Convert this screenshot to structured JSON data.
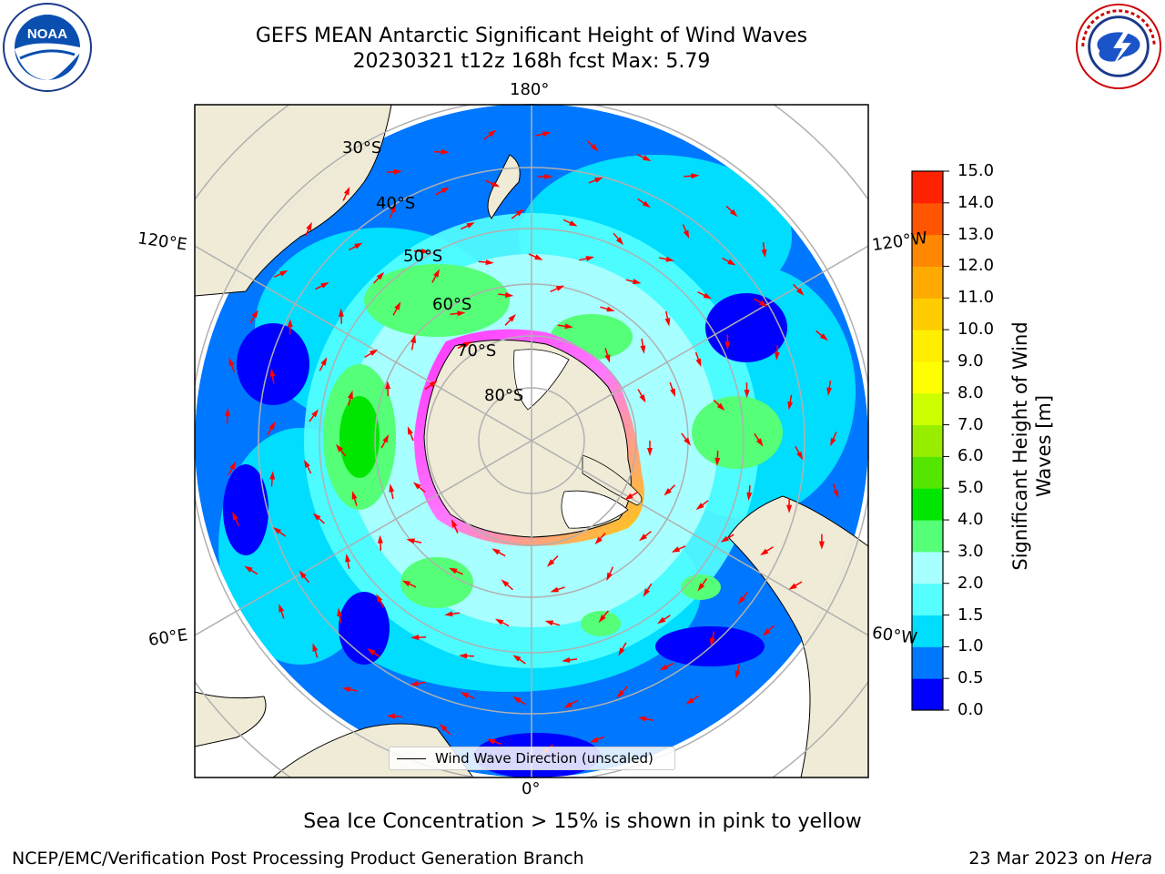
{
  "header": {
    "title_line1": "GEFS MEAN Antarctic Significant Height of Wind Waves",
    "title_line2": "20230321 t12z 168h fcst   Max: 5.79"
  },
  "logos": {
    "left": {
      "text": "NOAA",
      "ring_text": "NATIONAL OCEANIC AND ATMOSPHERIC ADMINISTRATION · U.S. DEPARTMENT OF COMMERCE"
    },
    "right": {
      "ring_text": "NATIONAL WEATHER SERVICE"
    }
  },
  "map": {
    "projection": "south-polar-stereographic",
    "lon_labels": {
      "top": "180°",
      "bottom": "0°",
      "upper_left": "120°E",
      "upper_right": "120°W",
      "lower_left": "60°E",
      "lower_right": "60°W"
    },
    "lat_labels": [
      "30°S",
      "40°S",
      "50°S",
      "60°S",
      "70°S",
      "80°S"
    ],
    "colors": {
      "land": "#efebd7",
      "antarctica_ice": "#ffffff",
      "sea_ice_edge": "#ff44ff",
      "arrow": "#ff0000",
      "graticule": "#b0b0b0"
    },
    "legend_label": "Wind Wave Direction (unscaled)"
  },
  "colorbar": {
    "label_line1": "Significant Height of Wind",
    "label_line2": "Waves [m]",
    "ticks": [
      "0.0",
      "0.5",
      "1.0",
      "1.5",
      "2.0",
      "3.0",
      "4.0",
      "5.0",
      "6.0",
      "7.0",
      "8.0",
      "9.0",
      "10.0",
      "11.0",
      "12.0",
      "13.0",
      "14.0",
      "15.0"
    ],
    "colors": [
      "#0000ff",
      "#0077ff",
      "#00ddff",
      "#55ffff",
      "#a8ffff",
      "#55ff77",
      "#00e600",
      "#55e600",
      "#99ee00",
      "#ccff00",
      "#ffff00",
      "#ffee00",
      "#ffcc00",
      "#ffaa00",
      "#ff8800",
      "#ff5500",
      "#ff2200"
    ]
  },
  "footer": {
    "note": "Sea Ice Concentration > 15% is shown in pink to yellow",
    "credit": "NCEP/EMC/Verification Post Processing Product Generation Branch",
    "date": "23 Mar 2023 on ",
    "machine": "Hera"
  }
}
